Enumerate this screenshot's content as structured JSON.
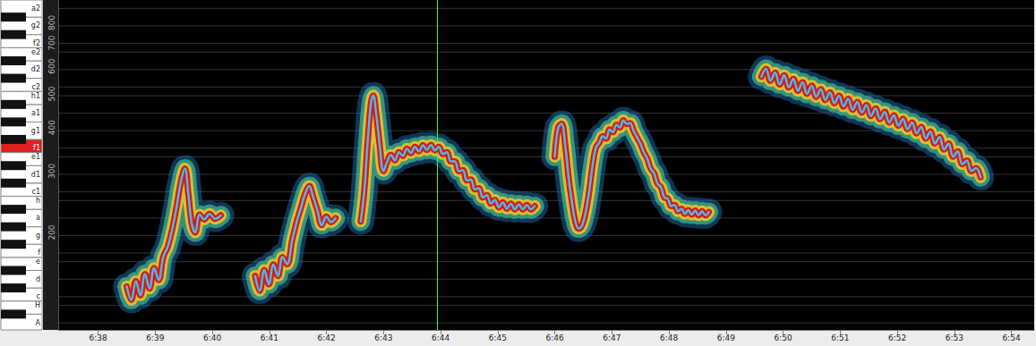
{
  "chart_data": {
    "type": "line",
    "color": "#4fb8e8",
    "log": "y",
    "grid": true,
    "xlim": [
      397.3,
      414.4
    ],
    "xticks": [
      {
        "value": 398,
        "label": "6:38"
      },
      {
        "value": 399,
        "label": "6:39"
      },
      {
        "value": 400,
        "label": "6:40"
      },
      {
        "value": 401,
        "label": "6:41"
      },
      {
        "value": 402,
        "label": "6:42"
      },
      {
        "value": 403,
        "label": "6:43"
      },
      {
        "value": 404,
        "label": "6:44"
      },
      {
        "value": 405,
        "label": "6:45"
      },
      {
        "value": 406,
        "label": "6:46"
      },
      {
        "value": 407,
        "label": "6:47"
      },
      {
        "value": 408,
        "label": "6:48"
      },
      {
        "value": 409,
        "label": "6:49"
      },
      {
        "value": 410,
        "label": "6:50"
      },
      {
        "value": 411,
        "label": "6:51"
      },
      {
        "value": 412,
        "label": "6:52"
      },
      {
        "value": 413,
        "label": "6:53"
      },
      {
        "value": 414,
        "label": "6:54"
      }
    ],
    "ylim": [
      105,
      930
    ],
    "yticks": [
      200,
      300,
      400,
      500,
      600,
      700,
      800
    ],
    "cursor_x": 403.94,
    "keyboard": {
      "labels": [
        "A",
        "H",
        "c",
        "d",
        "e",
        "f",
        "g",
        "a",
        "h",
        "c1",
        "d1",
        "e1",
        "f1",
        "g1",
        "a1",
        "h1",
        "c2",
        "d2",
        "e2",
        "f2",
        "g2",
        "a2"
      ],
      "values": [
        110,
        123.47,
        130.81,
        146.83,
        164.81,
        174.61,
        196,
        220,
        246.94,
        261.63,
        293.66,
        329.63,
        349.23,
        392,
        440,
        493.88,
        523.25,
        587.33,
        659.26,
        698.46,
        783.99,
        880
      ],
      "colors": [
        "#ffffff",
        "#ffffff",
        "#ffffff",
        "#ffffff",
        "#ffffff",
        "#ffffff",
        "#ffffff",
        "#ffffff",
        "#ffffff",
        "#ffffff",
        "#ffffff",
        "#ffffff",
        "#e02020",
        "#ffffff",
        "#ffffff",
        "#ffffff",
        "#ffffff",
        "#ffffff",
        "#ffffff",
        "#ffffff",
        "#ffffff",
        "#ffffff"
      ]
    },
    "series": [
      {
        "x": [
          398.5,
          398.58,
          398.66,
          398.74,
          398.82,
          398.9,
          398.98,
          399.06,
          399.14,
          399.22,
          399.3,
          399.38,
          399.45,
          399.52,
          399.58,
          399.64,
          399.7,
          399.78,
          399.86,
          399.95,
          400.05,
          400.15
        ],
        "values": [
          140,
          128,
          145,
          132,
          152,
          138,
          158,
          146,
          170,
          182,
          205,
          240,
          280,
          305,
          258,
          212,
          200,
          225,
          218,
          226,
          219,
          224
        ]
      },
      {
        "x": [
          400.75,
          400.83,
          400.91,
          400.99,
          401.07,
          401.15,
          401.23,
          401.31,
          401.4,
          401.48,
          401.56,
          401.64,
          401.7,
          401.76,
          401.84,
          401.92,
          402.0,
          402.08,
          402.16
        ],
        "values": [
          150,
          136,
          156,
          142,
          162,
          150,
          170,
          162,
          190,
          215,
          238,
          262,
          272,
          255,
          232,
          210,
          222,
          214,
          220
        ]
      },
      {
        "x": [
          402.6,
          402.66,
          402.72,
          402.78,
          402.82,
          402.87,
          402.93,
          403.0,
          403.06,
          403.13,
          403.2,
          403.27,
          403.34,
          403.41,
          403.48,
          403.55,
          403.62,
          403.69,
          403.76,
          403.83,
          403.9,
          403.97,
          404.04,
          404.11,
          404.18,
          404.25,
          404.32,
          404.39,
          404.46,
          404.53,
          404.6,
          404.67,
          404.74,
          404.81,
          404.88,
          404.95,
          405.02,
          405.09,
          405.16,
          405.23,
          405.3,
          405.37,
          405.44,
          405.51,
          405.58,
          405.65
        ],
        "values": [
          215,
          260,
          360,
          470,
          495,
          440,
          360,
          300,
          318,
          334,
          322,
          340,
          332,
          348,
          338,
          352,
          342,
          356,
          345,
          357,
          344,
          352,
          336,
          340,
          320,
          320,
          300,
          302,
          282,
          284,
          266,
          268,
          252,
          256,
          242,
          248,
          236,
          244,
          234,
          242,
          233,
          241,
          233,
          240,
          233,
          238
        ]
      },
      {
        "x": [
          406.0,
          406.06,
          406.12,
          406.18,
          406.24,
          406.3,
          406.36,
          406.42,
          406.48,
          406.54,
          406.6,
          406.66,
          406.72,
          406.78,
          406.84,
          406.9,
          406.96,
          407.02,
          407.08,
          407.14,
          407.2,
          407.26,
          407.32,
          407.38,
          407.44,
          407.5,
          407.56,
          407.62,
          407.68,
          407.74,
          407.8,
          407.86,
          407.92,
          407.98,
          408.04,
          408.1,
          408.16,
          408.22,
          408.28,
          408.34,
          408.4,
          408.46,
          408.52,
          408.58,
          408.64,
          408.7
        ],
        "values": [
          330,
          400,
          410,
          360,
          290,
          245,
          215,
          205,
          210,
          228,
          260,
          310,
          350,
          362,
          378,
          372,
          395,
          388,
          408,
          400,
          420,
          410,
          412,
          392,
          375,
          360,
          340,
          326,
          305,
          296,
          276,
          270,
          252,
          250,
          238,
          240,
          230,
          234,
          226,
          232,
          225,
          231,
          224,
          230,
          224,
          229
        ]
      },
      {
        "x": [
          409.62,
          409.7,
          409.78,
          409.86,
          409.94,
          410.02,
          410.1,
          410.18,
          410.26,
          410.34,
          410.42,
          410.5,
          410.58,
          410.66,
          410.74,
          410.82,
          410.9,
          410.98,
          411.06,
          411.14,
          411.22,
          411.3,
          411.38,
          411.46,
          411.54,
          411.62,
          411.7,
          411.78,
          411.86,
          411.94,
          412.02,
          412.1,
          412.18,
          412.26,
          412.34,
          412.42,
          412.5,
          412.58,
          412.66,
          412.74,
          412.82,
          412.9,
          412.98,
          413.06,
          413.14,
          413.22,
          413.3,
          413.38,
          413.46
        ],
        "values": [
          560,
          590,
          545,
          575,
          532,
          565,
          522,
          552,
          510,
          540,
          500,
          528,
          490,
          516,
          480,
          505,
          470,
          494,
          460,
          484,
          450,
          474,
          442,
          464,
          432,
          454,
          423,
          444,
          414,
          434,
          405,
          424,
          396,
          414,
          385,
          402,
          372,
          390,
          360,
          376,
          346,
          360,
          330,
          342,
          314,
          322,
          300,
          306,
          288
        ]
      }
    ]
  }
}
